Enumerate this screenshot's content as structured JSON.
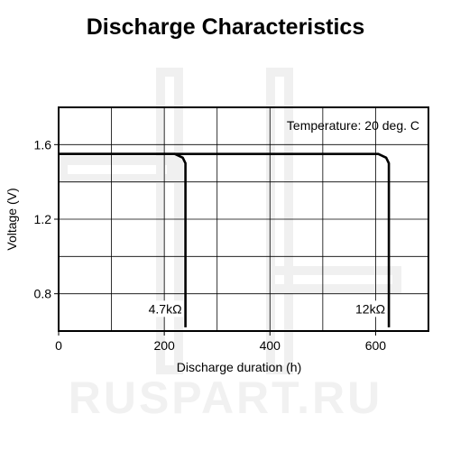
{
  "watermark_text": "RUSPART.RU",
  "chart_data": {
    "type": "line",
    "title": "Discharge Characteristics",
    "xlabel": "Discharge duration (h)",
    "ylabel": "Voltage (V)",
    "xlim": [
      0,
      700
    ],
    "ylim": [
      0.6,
      1.8
    ],
    "xticks": [
      0,
      200,
      400,
      600
    ],
    "xtick_labels": [
      "0",
      "200",
      "400",
      "600"
    ],
    "yticks": [
      0.8,
      1.2,
      1.6
    ],
    "ytick_labels": [
      "0.8",
      "1.2",
      "1.6"
    ],
    "grid": true,
    "grid_x_step": 100,
    "grid_y_step": 0.2,
    "annotation": "Temperature: 20 deg. C",
    "line_color": "#000000",
    "series": [
      {
        "name": "4.7kΩ",
        "x": [
          0,
          220,
          235,
          240,
          240
        ],
        "y": [
          1.55,
          1.55,
          1.53,
          1.5,
          0.62
        ]
      },
      {
        "name": "12kΩ",
        "x": [
          0,
          605,
          620,
          625,
          625
        ],
        "y": [
          1.55,
          1.55,
          1.53,
          1.5,
          0.62
        ]
      }
    ]
  }
}
